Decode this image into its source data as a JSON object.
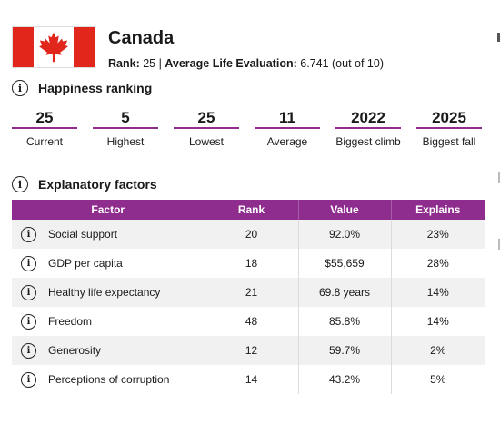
{
  "country": {
    "name": "Canada",
    "rank_label": "Rank:",
    "rank_value": "25",
    "separator": "|",
    "eval_label": "Average Life Evaluation:",
    "eval_value": "6.741 (out of 10)"
  },
  "flag": {
    "red": "#e1261c",
    "white": "#ffffff"
  },
  "colors": {
    "accent": "#8e2d8e",
    "row_alt": "#f1f1f1"
  },
  "happiness": {
    "title": "Happiness ranking",
    "stats": [
      {
        "value": "25",
        "label": "Current"
      },
      {
        "value": "5",
        "label": "Highest"
      },
      {
        "value": "25",
        "label": "Lowest"
      },
      {
        "value": "11",
        "label": "Average"
      },
      {
        "value": "2022",
        "label": "Biggest climb"
      },
      {
        "value": "2025",
        "label": "Biggest fall"
      }
    ]
  },
  "explanatory": {
    "title": "Explanatory factors",
    "headers": [
      "Factor",
      "Rank",
      "Value",
      "Explains"
    ],
    "rows": [
      {
        "factor": "Social support",
        "rank": "20",
        "value": "92.0%",
        "explains": "23%"
      },
      {
        "factor": "GDP per capita",
        "rank": "18",
        "value": "$55,659",
        "explains": "28%"
      },
      {
        "factor": "Healthy life expectancy",
        "rank": "21",
        "value": "69.8 years",
        "explains": "14%"
      },
      {
        "factor": "Freedom",
        "rank": "48",
        "value": "85.8%",
        "explains": "14%"
      },
      {
        "factor": "Generosity",
        "rank": "12",
        "value": "59.7%",
        "explains": "2%"
      },
      {
        "factor": "Perceptions of corruption",
        "rank": "14",
        "value": "43.2%",
        "explains": "5%"
      }
    ]
  },
  "icons": {
    "info": "i",
    "maple_leaf": "maple-leaf-icon"
  }
}
